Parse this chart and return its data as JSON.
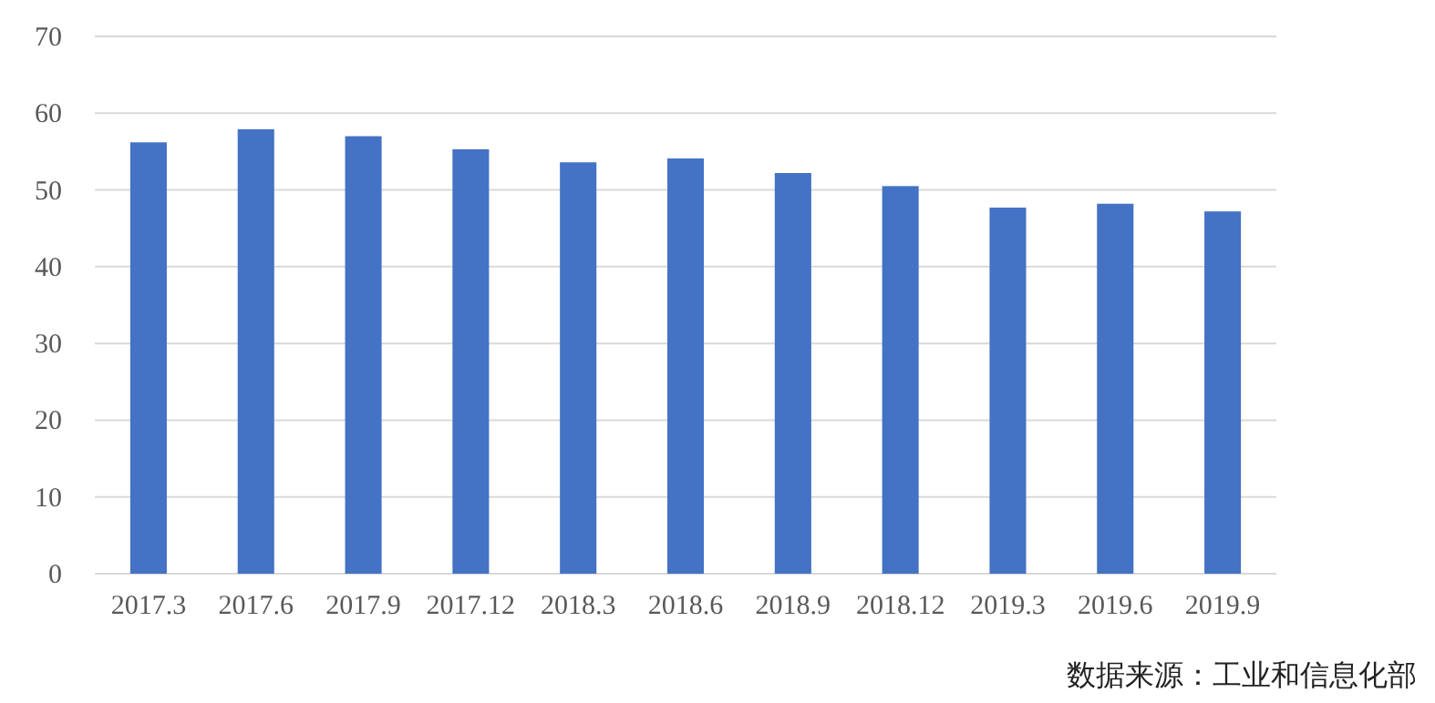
{
  "chart_data": {
    "type": "bar",
    "categories": [
      "2017.3",
      "2017.6",
      "2017.9",
      "2017.12",
      "2018.3",
      "2018.6",
      "2018.9",
      "2018.12",
      "2019.3",
      "2019.6",
      "2019.9"
    ],
    "values": [
      56.2,
      57.9,
      57.0,
      55.3,
      53.6,
      54.1,
      52.2,
      50.5,
      47.7,
      48.2,
      47.2
    ],
    "color": "#4472c4",
    "ylim": [
      0,
      70
    ],
    "yticks": [
      0,
      10,
      20,
      30,
      40,
      50,
      60,
      70
    ],
    "grid": "y",
    "annotations": [
      "数据来源：工业和信息化部"
    ]
  }
}
